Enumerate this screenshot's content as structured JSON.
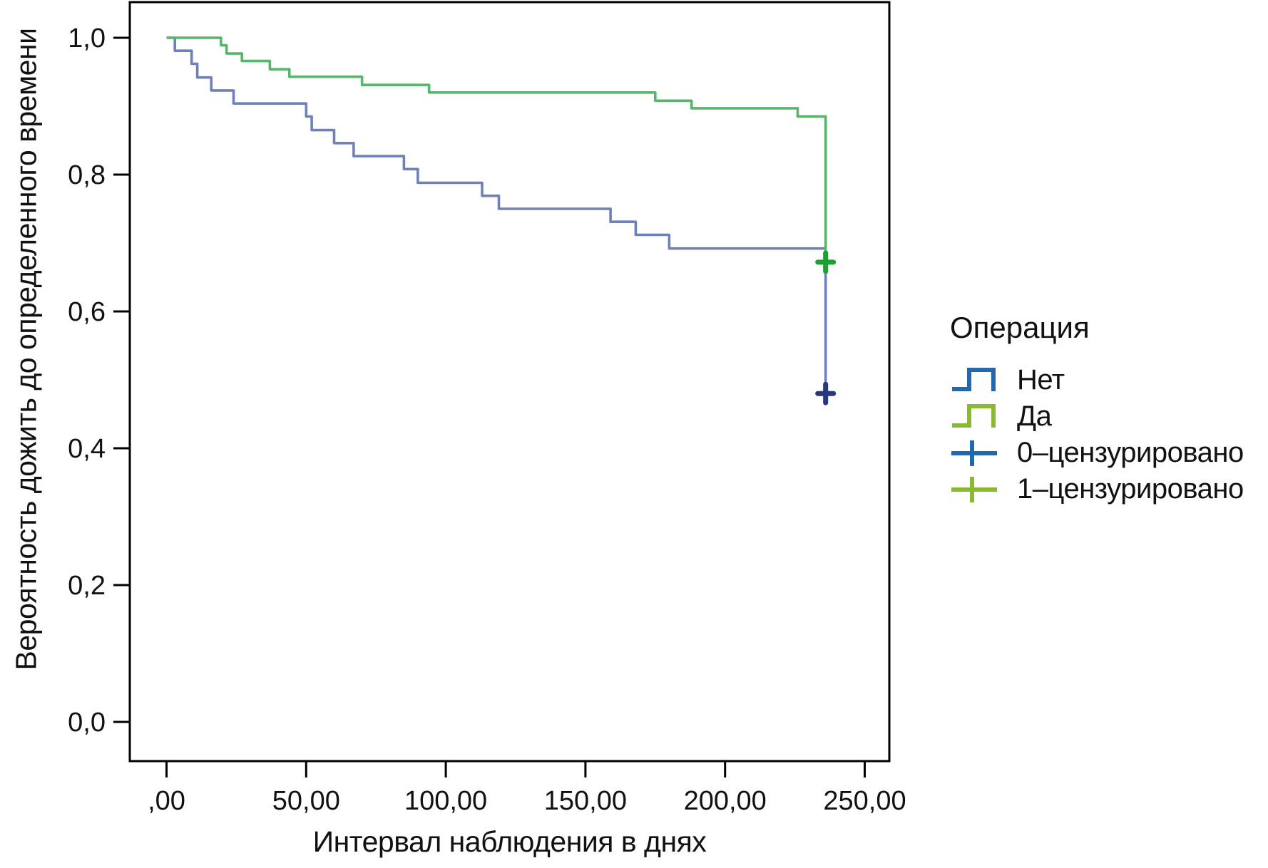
{
  "chart_data": {
    "type": "line",
    "subtype": "kaplan-meier-step",
    "title": "",
    "xlabel": "Интервал наблюдения в днях",
    "ylabel": "Вероятность дожить до определенного времени",
    "xlim": [
      -13,
      259
    ],
    "ylim": [
      -0.057,
      1.052
    ],
    "grid": false,
    "x_ticks": {
      "values": [
        0,
        50,
        100,
        150,
        200,
        250
      ],
      "labels": [
        ",00",
        "50,00",
        "100,00",
        "150,00",
        "200,00",
        "250,00"
      ]
    },
    "y_ticks": {
      "values": [
        0.0,
        0.2,
        0.4,
        0.6,
        0.8,
        1.0
      ],
      "labels": [
        "0,0",
        "0,2",
        "0,4",
        "0,6",
        "0,8",
        "1,0"
      ]
    },
    "series": [
      {
        "name": "Нет",
        "color": "#6F81BA",
        "censor_color": "#28367E",
        "steps": [
          [
            0,
            1.0
          ],
          [
            3,
            0.981
          ],
          [
            9,
            0.962
          ],
          [
            11,
            0.942
          ],
          [
            16,
            0.923
          ],
          [
            24,
            0.904
          ],
          [
            50,
            0.885
          ],
          [
            52,
            0.865
          ],
          [
            60,
            0.846
          ],
          [
            67,
            0.827
          ],
          [
            85,
            0.808
          ],
          [
            90,
            0.788
          ],
          [
            113,
            0.769
          ],
          [
            119,
            0.75
          ],
          [
            159,
            0.731
          ],
          [
            168,
            0.712
          ],
          [
            180,
            0.692
          ],
          [
            236,
            0.48
          ]
        ],
        "censor_points": [
          [
            236,
            0.48
          ]
        ]
      },
      {
        "name": "Да",
        "color": "#5BB46E",
        "censor_color": "#1F9E31",
        "steps": [
          [
            0,
            1.0
          ],
          [
            19.5,
            0.989
          ],
          [
            21.5,
            0.977
          ],
          [
            27,
            0.966
          ],
          [
            37,
            0.954
          ],
          [
            44,
            0.943
          ],
          [
            70,
            0.931
          ],
          [
            94,
            0.92
          ],
          [
            175,
            0.908
          ],
          [
            188,
            0.897
          ],
          [
            226,
            0.885
          ],
          [
            236,
            0.672
          ]
        ],
        "censor_points": [
          [
            236,
            0.672
          ]
        ]
      }
    ],
    "legend": {
      "title": "Операция",
      "position": "right",
      "entries": [
        {
          "label": "Нет",
          "glyph": "step-line",
          "color": "#2368AB"
        },
        {
          "label": "Да",
          "glyph": "step-line",
          "color": "#8AB933"
        },
        {
          "label": "0–цензурировано",
          "glyph": "censor-cross",
          "color": "#2368AB"
        },
        {
          "label": "1–цензурировано",
          "glyph": "censor-cross",
          "color": "#8AB933"
        }
      ]
    },
    "axis_color": "#000000",
    "text_color": "#111111"
  }
}
